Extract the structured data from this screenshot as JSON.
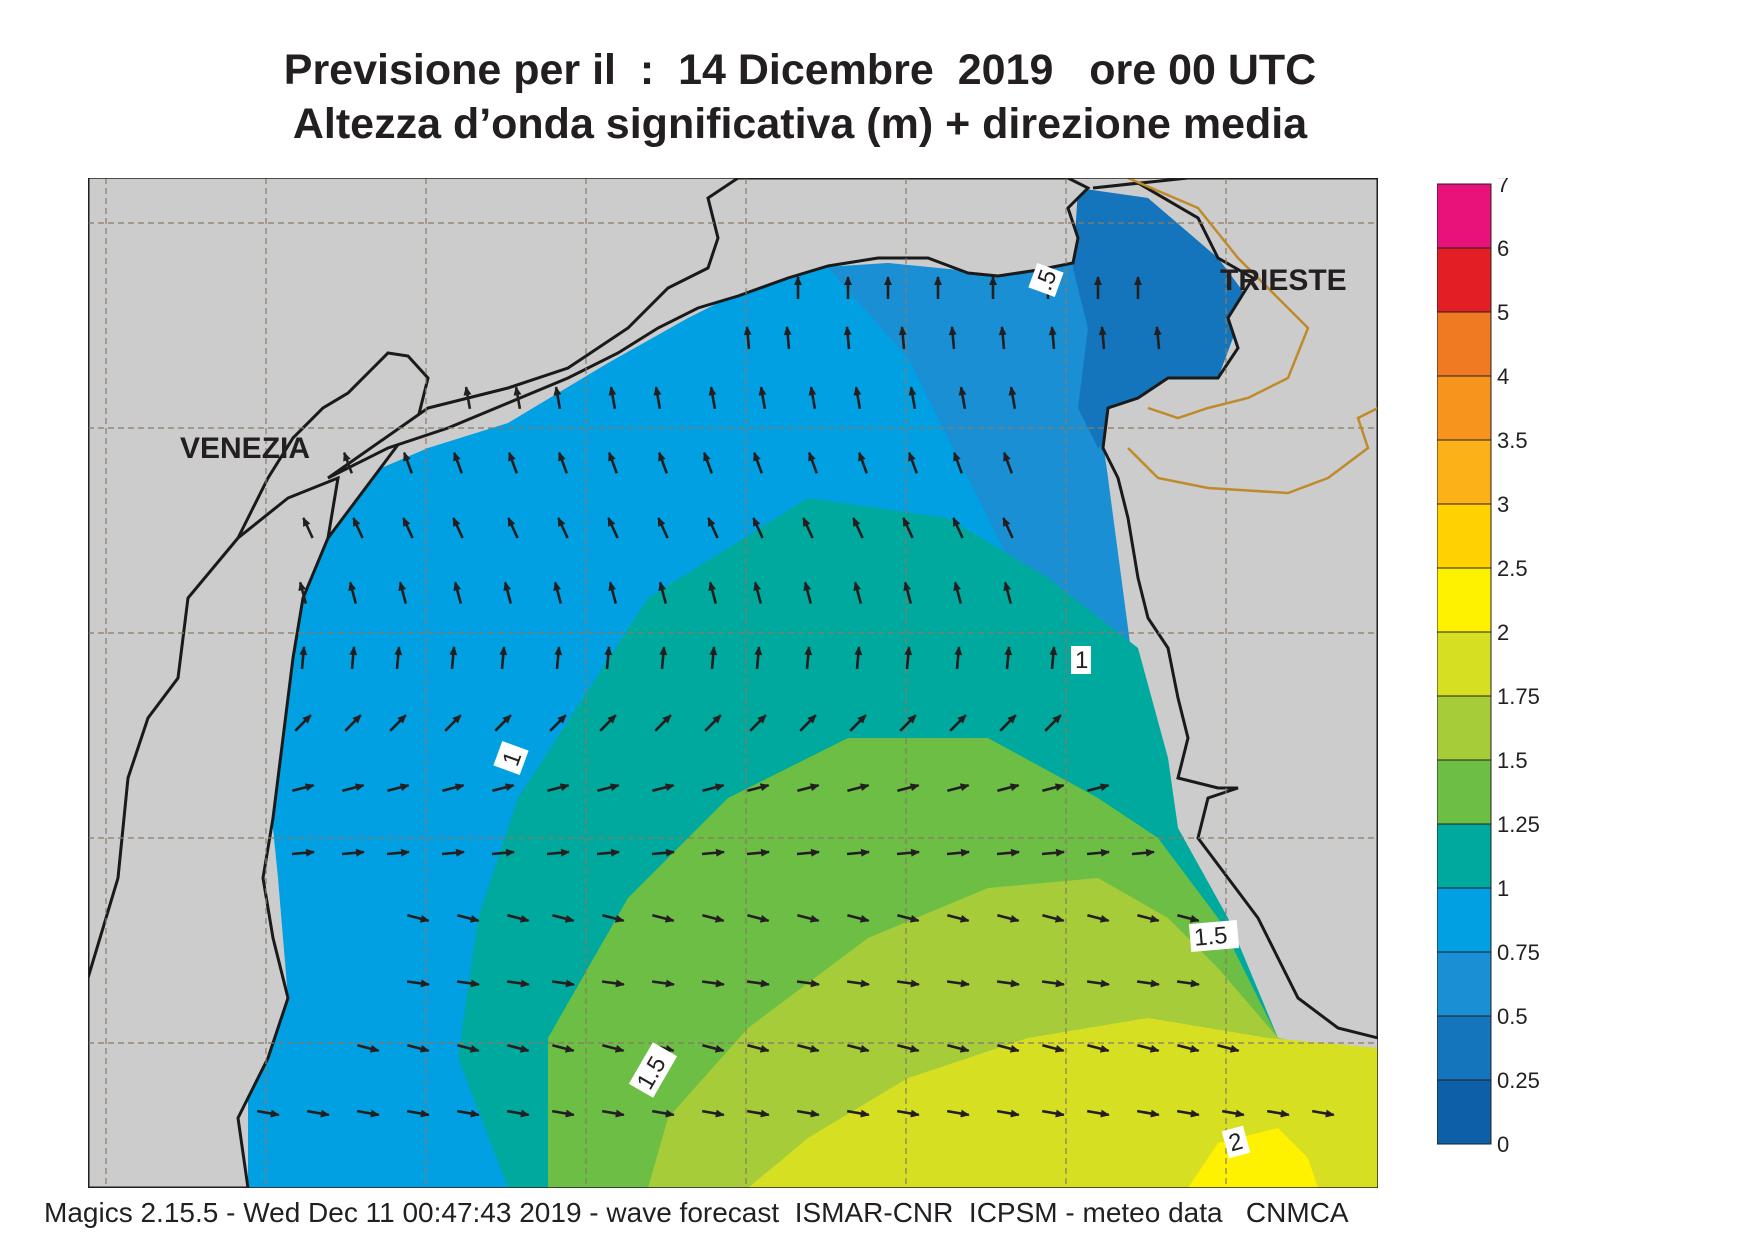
{
  "header": {
    "line1": "Previsione per il  :  14 Dicembre  2019   ore 00 UTC",
    "line2": "Altezza d’onda significativa (m) + direzione media"
  },
  "map": {
    "cities": [
      "VENEZIA",
      "TRIESTE"
    ],
    "contour_labels": [
      "1",
      "1",
      "1.5",
      "1.5",
      "2",
      ".5"
    ],
    "colors": {
      "land": "#cccccc",
      "coast": "#1a1a1a",
      "border": "#c08a2a",
      "grid": "#8a7a66",
      "arrow": "#231f20"
    }
  },
  "legend": {
    "ticks": [
      "7",
      "6",
      "5",
      "4",
      "3.5",
      "3",
      "2.5",
      "2",
      "1.75",
      "1.5",
      "1.25",
      "1",
      "0.75",
      "0.5",
      "0.25",
      "0"
    ],
    "colors": [
      "#e8127a",
      "#e31e24",
      "#f07a21",
      "#f7941d",
      "#fbb117",
      "#ffd200",
      "#fff200",
      "#d7df23",
      "#a6cd39",
      "#6dbe45",
      "#00a99d",
      "#00a0e3",
      "#1a8fd4",
      "#1475bc",
      "#0d5fa8"
    ]
  },
  "footer": {
    "text": "Magics 2.15.5 - Wed Dec 11 00:47:43 2019 - wave forecast  ISMAR-CNR  ICPSM - meteo data   CNMCA"
  }
}
